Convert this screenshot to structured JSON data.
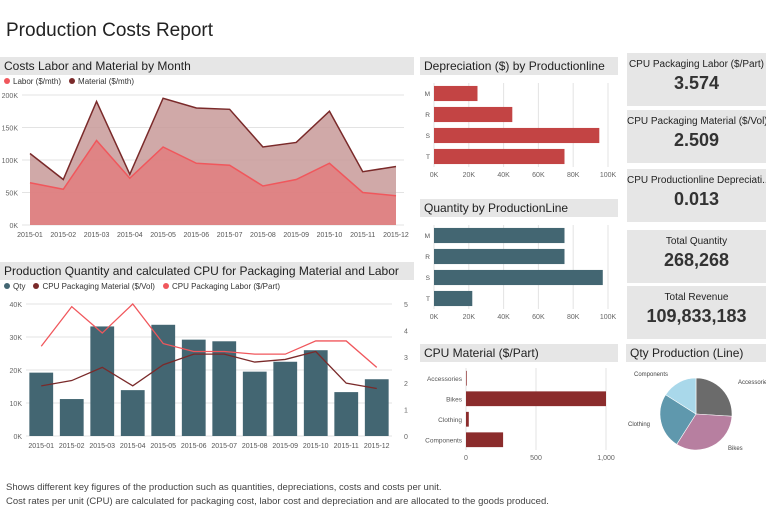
{
  "page": {
    "title": "Production Costs Report",
    "footer_line1": "Shows different key figures of the production such as quantities, depreciations, costs and costs per unit.",
    "footer_line2": "Cost rates per unit (CPU) are calculated for packaging cost, labor cost and depreciation and are allocated to the goods produced."
  },
  "colors": {
    "labor": "#f0575c",
    "material": "#7a2a2a",
    "teal": "#436672",
    "red_bar": "#c34444",
    "darkred_bar": "#8b2c2c",
    "panel_bg": "#e6e6e6"
  },
  "panels": {
    "costs": {
      "title": "Costs Labor and Material by Month",
      "legend_labor": "Labor ($/mth)",
      "legend_material": "Material ($/mth)"
    },
    "combo": {
      "title": "Production Quantity and calculated CPU for Packaging Material and Labor",
      "legend_qty": "Qty",
      "legend_material": "CPU Packaging Material ($/Vol)",
      "legend_labor": "CPU Packaging Labor ($/Part)"
    },
    "depreciation": {
      "title": "Depreciation ($) by Productionline"
    },
    "quantity": {
      "title": "Quantity by ProductionLine"
    },
    "cpu_material": {
      "title": "CPU Material ($/Part)"
    },
    "qty_production": {
      "title": "Qty Production (Line)"
    }
  },
  "kpis": [
    {
      "label": "CPU Packaging Labor ($/Part)",
      "value": "3.574"
    },
    {
      "label": "CPU Packaging Material ($/Vol)",
      "value": "2.509"
    },
    {
      "label": "CPU Productionline Depreciati...",
      "value": "0.013"
    },
    {
      "label": "Total Quantity",
      "value": "268,268"
    },
    {
      "label": "Total Revenue",
      "value": "109,833,183"
    }
  ],
  "chart_data": [
    {
      "type": "area",
      "title": "Costs Labor and Material by Month",
      "x": [
        "2015-01",
        "2015-02",
        "2015-03",
        "2015-04",
        "2015-05",
        "2015-06",
        "2015-07",
        "2015-08",
        "2015-09",
        "2015-10",
        "2015-11",
        "2015-12"
      ],
      "series": [
        {
          "name": "Material ($/mth)",
          "values": [
            110000,
            70000,
            190000,
            78000,
            195000,
            180000,
            178000,
            120000,
            127000,
            175000,
            82000,
            90000
          ]
        },
        {
          "name": "Labor ($/mth)",
          "values": [
            65000,
            55000,
            130000,
            72000,
            120000,
            95000,
            92000,
            60000,
            70000,
            95000,
            50000,
            45000
          ]
        }
      ],
      "yticks": [
        "0K",
        "50K",
        "100K",
        "150K",
        "200K"
      ],
      "ylim": [
        0,
        200000
      ],
      "legend": "top-left"
    },
    {
      "type": "bar",
      "title": "Production Quantity and calculated CPU for Packaging Material and Labor",
      "x": [
        "2015-01",
        "2015-02",
        "2015-03",
        "2015-04",
        "2015-05",
        "2015-06",
        "2015-07",
        "2015-08",
        "2015-09",
        "2015-10",
        "2015-11",
        "2015-12"
      ],
      "series": [
        {
          "name": "Qty",
          "values": [
            19200,
            11200,
            33200,
            13900,
            33700,
            29200,
            28700,
            19500,
            22500,
            26000,
            13300,
            17200
          ],
          "axis": "left"
        },
        {
          "name": "CPU Packaging Material ($/Vol)",
          "values": [
            1.9,
            2.1,
            2.6,
            1.9,
            2.7,
            3.1,
            3.1,
            2.8,
            2.9,
            3.2,
            2.0,
            1.8
          ],
          "axis": "right"
        },
        {
          "name": "CPU Packaging Labor ($/Part)",
          "values": [
            3.4,
            4.9,
            3.9,
            5.0,
            3.5,
            3.2,
            3.2,
            3.1,
            3.1,
            3.6,
            3.6,
            2.6
          ],
          "axis": "right"
        }
      ],
      "yticks_left": [
        "0K",
        "10K",
        "20K",
        "30K",
        "40K"
      ],
      "ylim_left": [
        0,
        40000
      ],
      "yticks_right": [
        "0",
        "1",
        "2",
        "3",
        "4",
        "5"
      ],
      "ylim_right": [
        0,
        5
      ],
      "legend": "top-left"
    },
    {
      "type": "bar",
      "orientation": "horizontal",
      "title": "Depreciation ($) by Productionline",
      "categories": [
        "M",
        "R",
        "S",
        "T"
      ],
      "values": [
        25000,
        45000,
        95000,
        75000
      ],
      "xticks": [
        "0K",
        "20K",
        "40K",
        "60K",
        "80K",
        "100K"
      ],
      "xlim": [
        0,
        100000
      ]
    },
    {
      "type": "bar",
      "orientation": "horizontal",
      "title": "Quantity by ProductionLine",
      "categories": [
        "M",
        "R",
        "S",
        "T"
      ],
      "values": [
        75000,
        75000,
        97000,
        22000
      ],
      "xticks": [
        "0K",
        "20K",
        "40K",
        "60K",
        "80K",
        "100K"
      ],
      "xlim": [
        0,
        100000
      ]
    },
    {
      "type": "bar",
      "orientation": "horizontal",
      "title": "CPU Material ($/Part)",
      "categories": [
        "Accessories",
        "Bikes",
        "Clothing",
        "Components"
      ],
      "values": [
        5,
        1000,
        20,
        265
      ],
      "xticks": [
        "0",
        "500",
        "1,000"
      ],
      "xlim": [
        0,
        1000
      ]
    },
    {
      "type": "pie",
      "title": "Qty Production (Line)",
      "categories": [
        "Accessories",
        "Bikes",
        "Clothing",
        "Components"
      ],
      "values": [
        26,
        33,
        25,
        16
      ],
      "colors": [
        "#6b6b6b",
        "#b77fa0",
        "#5f98ad",
        "#a9d8ea"
      ]
    }
  ]
}
